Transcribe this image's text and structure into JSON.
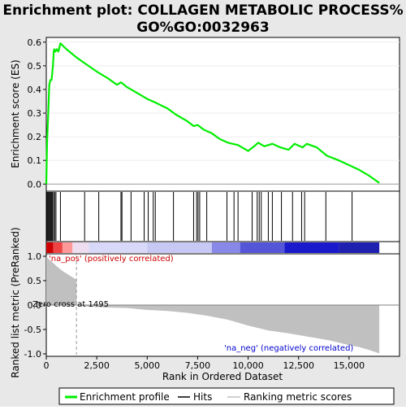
{
  "chart_data": {
    "type": "line",
    "title": "Enrichment plot: COLLAGEN METABOLIC PROCESS%GO%GO:0032963",
    "title_lines": [
      "Enrichment plot: COLLAGEN METABOLIC PROCESS%",
      "GO%GO:0032963"
    ],
    "top_panel": {
      "ylabel": "Enrichment score (ES)",
      "ylim": [
        -0.03,
        0.62
      ],
      "yticks": [
        0.0,
        0.1,
        0.2,
        0.3,
        0.4,
        0.5,
        0.6
      ],
      "ytick_labels": [
        "0.0",
        "0.1",
        "0.2",
        "0.3",
        "0.4",
        "0.5",
        "0.6"
      ],
      "series": [
        {
          "name": "Enrichment profile",
          "color": "#00ee00",
          "points": [
            [
              0,
              0.0
            ],
            [
              40,
              0.18
            ],
            [
              90,
              0.28
            ],
            [
              150,
              0.42
            ],
            [
              200,
              0.44
            ],
            [
              260,
              0.44
            ],
            [
              330,
              0.5
            ],
            [
              370,
              0.56
            ],
            [
              400,
              0.57
            ],
            [
              450,
              0.56
            ],
            [
              520,
              0.57
            ],
            [
              600,
              0.56
            ],
            [
              700,
              0.595
            ],
            [
              1000,
              0.57
            ],
            [
              1500,
              0.535
            ],
            [
              2000,
              0.505
            ],
            [
              2600,
              0.47
            ],
            [
              3000,
              0.45
            ],
            [
              3500,
              0.42
            ],
            [
              3700,
              0.43
            ],
            [
              4000,
              0.41
            ],
            [
              4500,
              0.385
            ],
            [
              5000,
              0.36
            ],
            [
              5400,
              0.345
            ],
            [
              6000,
              0.32
            ],
            [
              6400,
              0.295
            ],
            [
              7000,
              0.265
            ],
            [
              7300,
              0.245
            ],
            [
              7500,
              0.25
            ],
            [
              7800,
              0.23
            ],
            [
              8200,
              0.215
            ],
            [
              8600,
              0.19
            ],
            [
              9000,
              0.175
            ],
            [
              9500,
              0.165
            ],
            [
              10000,
              0.14
            ],
            [
              10300,
              0.16
            ],
            [
              10500,
              0.175
            ],
            [
              10800,
              0.16
            ],
            [
              11200,
              0.17
            ],
            [
              11600,
              0.155
            ],
            [
              12000,
              0.145
            ],
            [
              12300,
              0.17
            ],
            [
              12700,
              0.155
            ],
            [
              12900,
              0.17
            ],
            [
              13400,
              0.155
            ],
            [
              13900,
              0.12
            ],
            [
              14500,
              0.1
            ],
            [
              15000,
              0.08
            ],
            [
              15500,
              0.06
            ],
            [
              16000,
              0.035
            ],
            [
              16500,
              0.005
            ]
          ]
        }
      ]
    },
    "hits": [
      30,
      70,
      110,
      150,
      190,
      230,
      270,
      310,
      360,
      420,
      480,
      700,
      1900,
      2600,
      3700,
      3750,
      4200,
      4850,
      5050,
      5300,
      5400,
      6300,
      7300,
      7450,
      7520,
      7600,
      7950,
      8950,
      9300,
      9500,
      10200,
      10450,
      10550,
      10650,
      11000,
      11200,
      11650,
      12200,
      12650,
      12800,
      13850,
      15150
    ],
    "heatmap_segments": [
      {
        "start": 0,
        "end": 350,
        "color": "#cc0000"
      },
      {
        "start": 350,
        "end": 800,
        "color": "#ee4444"
      },
      {
        "start": 800,
        "end": 1300,
        "color": "#ff9999"
      },
      {
        "start": 1300,
        "end": 2100,
        "color": "#eeddee"
      },
      {
        "start": 2100,
        "end": 5000,
        "color": "#d8d8f8"
      },
      {
        "start": 5000,
        "end": 8200,
        "color": "#c8c8f4"
      },
      {
        "start": 8200,
        "end": 9600,
        "color": "#8888e8"
      },
      {
        "start": 9600,
        "end": 11800,
        "color": "#5555d8"
      },
      {
        "start": 11800,
        "end": 14500,
        "color": "#1a1acc"
      },
      {
        "start": 14500,
        "end": 16500,
        "color": "#2020b0"
      }
    ],
    "bottom_panel": {
      "ylabel": "Ranked list metric (PreRanked)",
      "ylim": [
        -1.05,
        1.05
      ],
      "yticks": [
        1.0,
        0.5,
        0.0,
        -0.5,
        -1.0
      ],
      "ytick_labels": [
        "1.0",
        "0.5",
        "0.0",
        "-0.5",
        "-1.0"
      ],
      "metric_points": [
        [
          0,
          1.0
        ],
        [
          100,
          0.95
        ],
        [
          300,
          0.88
        ],
        [
          500,
          0.8
        ],
        [
          800,
          0.7
        ],
        [
          1100,
          0.62
        ],
        [
          1495,
          0.52
        ],
        [
          1495,
          0.0
        ],
        [
          2000,
          -0.03
        ],
        [
          3000,
          -0.05
        ],
        [
          4000,
          -0.06
        ],
        [
          5000,
          -0.1
        ],
        [
          6000,
          -0.12
        ],
        [
          7000,
          -0.16
        ],
        [
          8000,
          -0.22
        ],
        [
          9000,
          -0.3
        ],
        [
          10000,
          -0.42
        ],
        [
          11000,
          -0.52
        ],
        [
          12000,
          -0.58
        ],
        [
          13000,
          -0.65
        ],
        [
          14000,
          -0.72
        ],
        [
          15000,
          -0.82
        ],
        [
          15500,
          -0.86
        ],
        [
          16000,
          -0.92
        ],
        [
          16500,
          -0.99
        ]
      ],
      "annotations": {
        "pos": "'na_pos' (positively correlated)",
        "neg": "'na_neg' (negatively correlated)",
        "zero_cross": "Zero cross at 1495"
      },
      "zero_cross": 1495,
      "pos_color": "#cc0000",
      "neg_color": "#0000cc"
    },
    "xlabel": "Rank in Ordered Dataset",
    "xlim": [
      0,
      17500
    ],
    "xticks": [
      0,
      2500,
      5000,
      7500,
      10000,
      12500,
      15000
    ],
    "xtick_labels": [
      "0",
      "2,500",
      "5,000",
      "7,500",
      "10,000",
      "12,500",
      "15,000"
    ],
    "legend": {
      "placement": "bottom",
      "items": [
        {
          "label": "Enrichment profile",
          "color": "#00ee00"
        },
        {
          "label": "Hits",
          "color": "#000000"
        },
        {
          "label": "Ranking metric scores",
          "color": "#c0c0c0"
        }
      ]
    }
  }
}
